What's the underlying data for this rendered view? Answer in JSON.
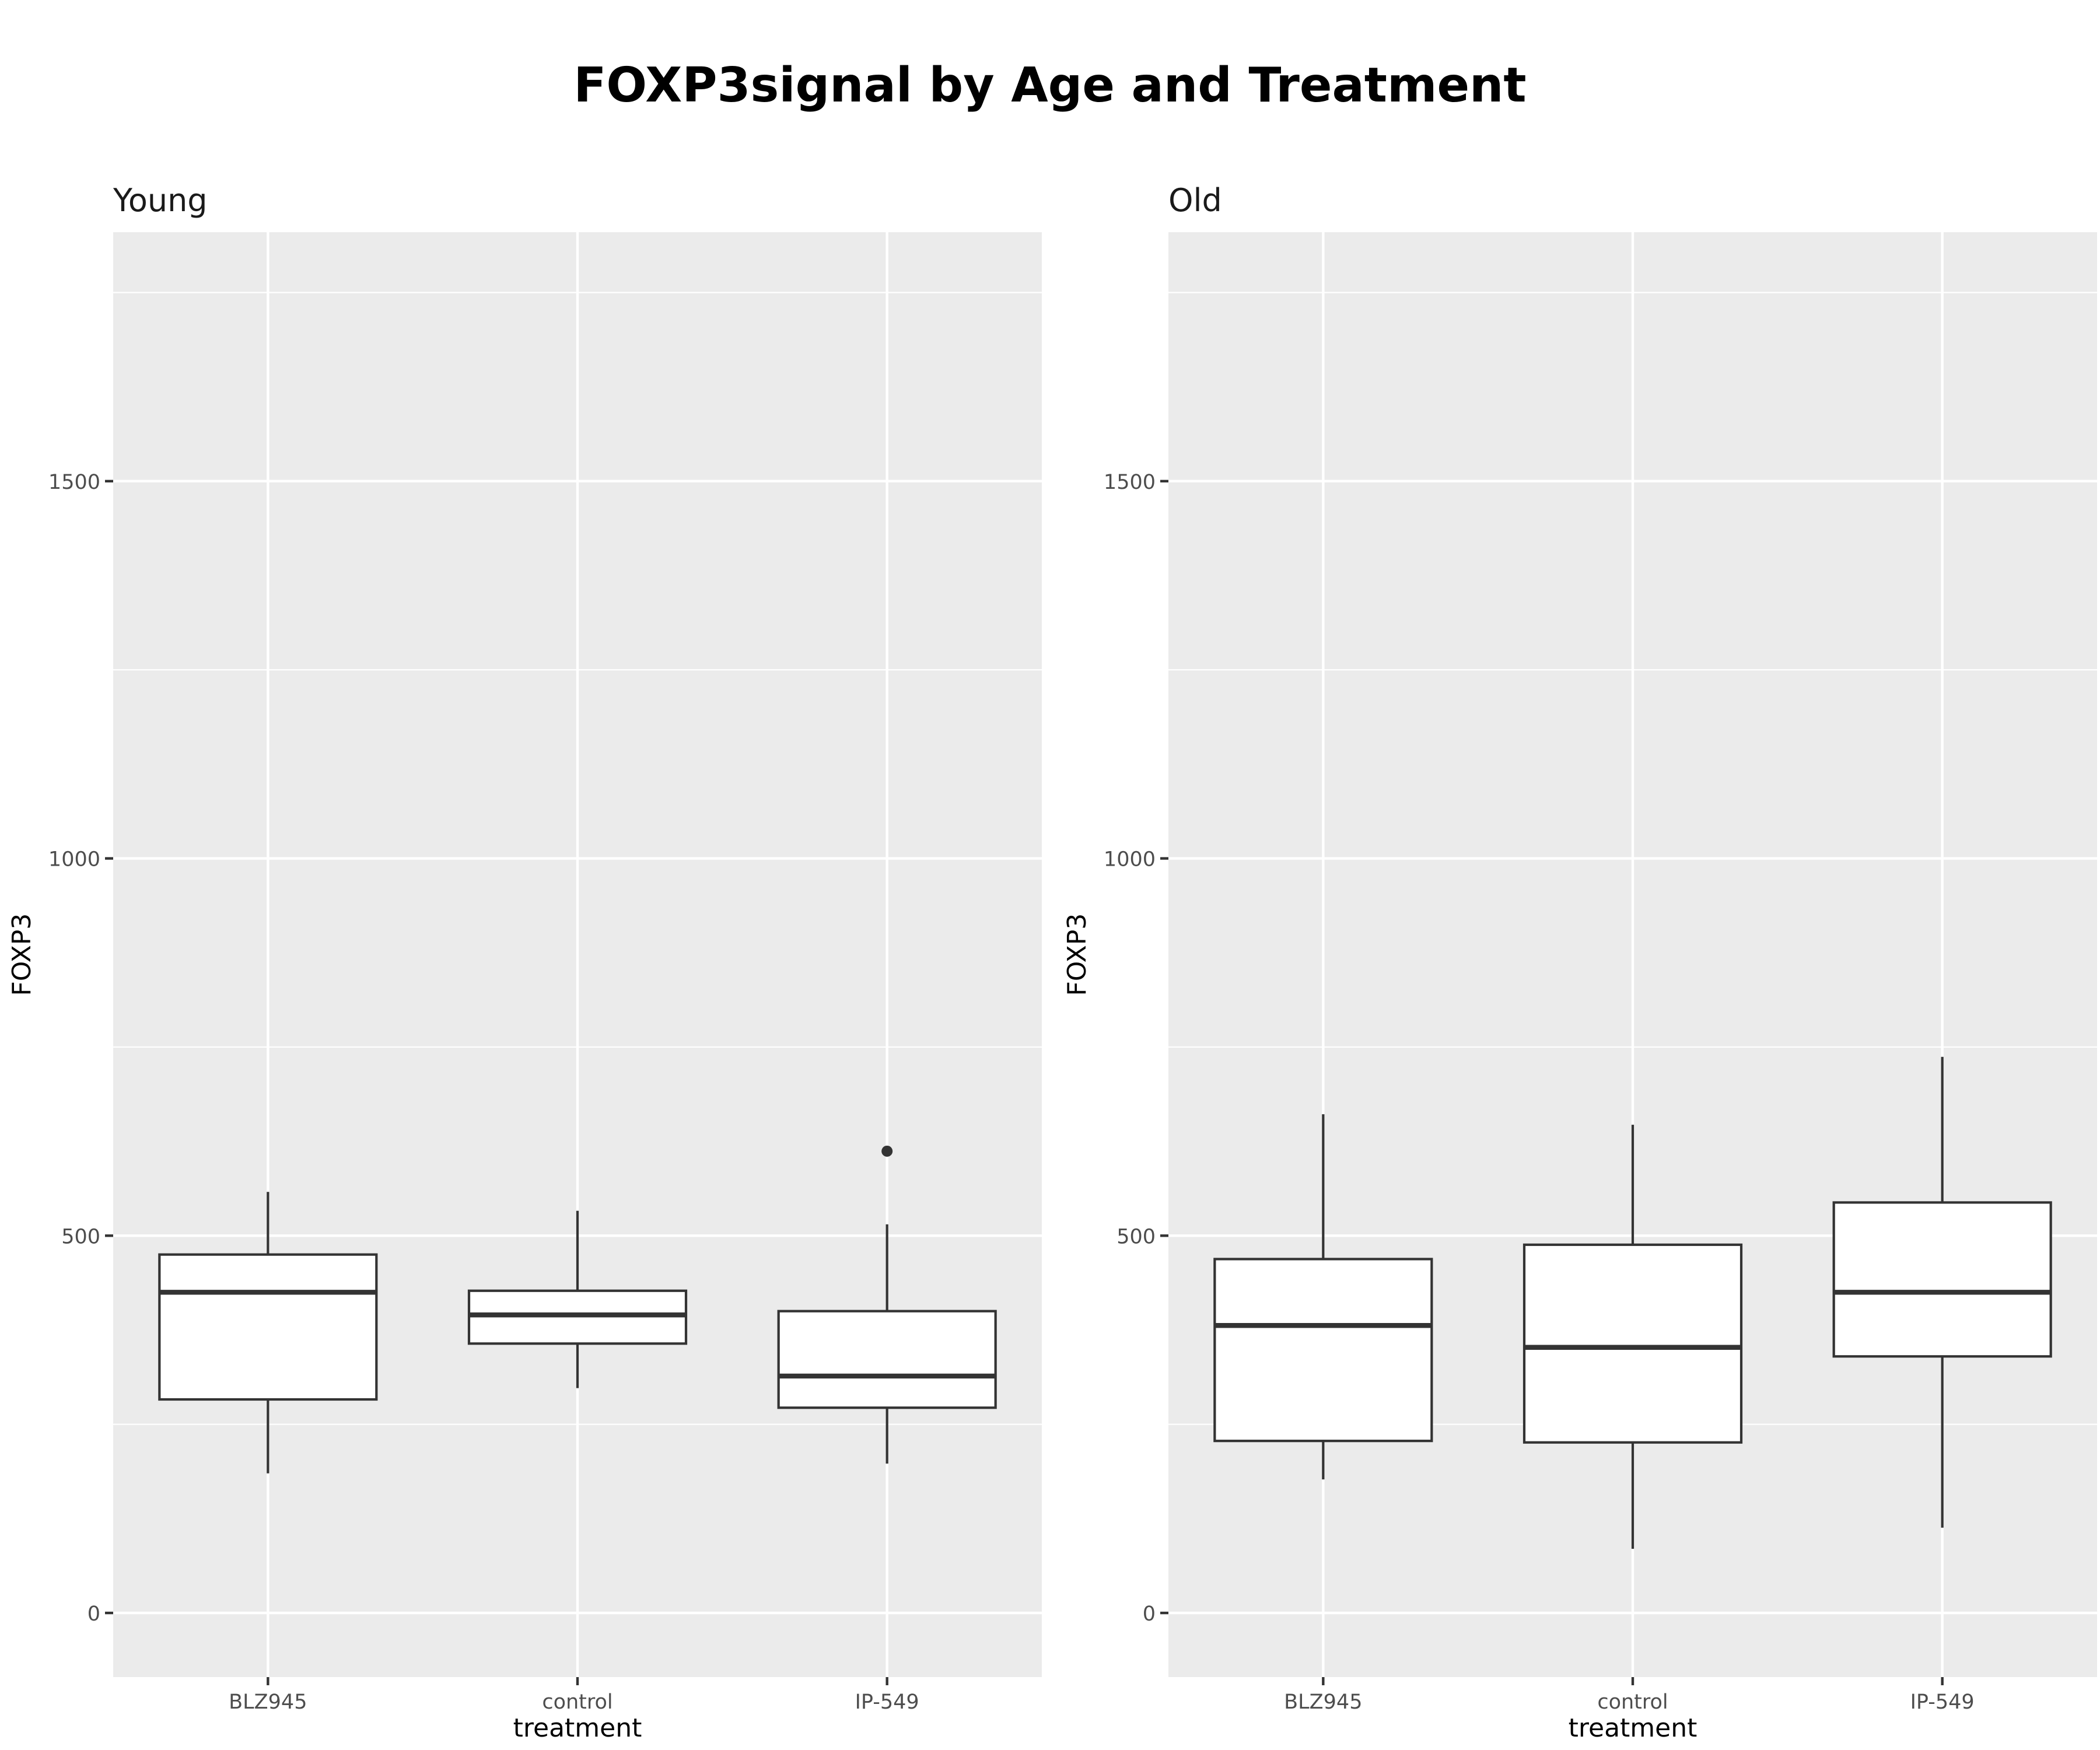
{
  "chart_data": {
    "type": "boxplot",
    "title": "FOXP3signal by Age and Treatment",
    "xlabel": "treatment",
    "ylabel": "FOXP3",
    "ylim": [
      -85,
      1830
    ],
    "yticks": [
      0,
      500,
      1000,
      1500
    ],
    "categories": [
      "BLZ945",
      "control",
      "IP-549"
    ],
    "grid": true,
    "panels": [
      {
        "name": "Young",
        "boxes": [
          {
            "category": "BLZ945",
            "min": 185,
            "q1": 283,
            "median": 425,
            "q3": 475,
            "max": 558,
            "outliers": []
          },
          {
            "category": "control",
            "min": 298,
            "q1": 357,
            "median": 395,
            "q3": 427,
            "max": 533,
            "outliers": []
          },
          {
            "category": "IP-549",
            "min": 198,
            "q1": 272,
            "median": 314,
            "q3": 400,
            "max": 515,
            "outliers": [
              612
            ]
          }
        ]
      },
      {
        "name": "Old",
        "boxes": [
          {
            "category": "BLZ945",
            "min": 177,
            "q1": 228,
            "median": 381,
            "q3": 469,
            "max": 661,
            "outliers": []
          },
          {
            "category": "control",
            "min": 85,
            "q1": 226,
            "median": 352,
            "q3": 488,
            "max": 647,
            "outliers": []
          },
          {
            "category": "IP-549",
            "min": 113,
            "q1": 340,
            "median": 425,
            "q3": 544,
            "max": 737,
            "outliers": []
          }
        ]
      }
    ]
  },
  "colors": {
    "panel_background": "#ebebeb",
    "grid_line": "#ffffff",
    "box_fill": "#ffffff",
    "box_line": "#333333",
    "tick_mark": "#333333"
  }
}
